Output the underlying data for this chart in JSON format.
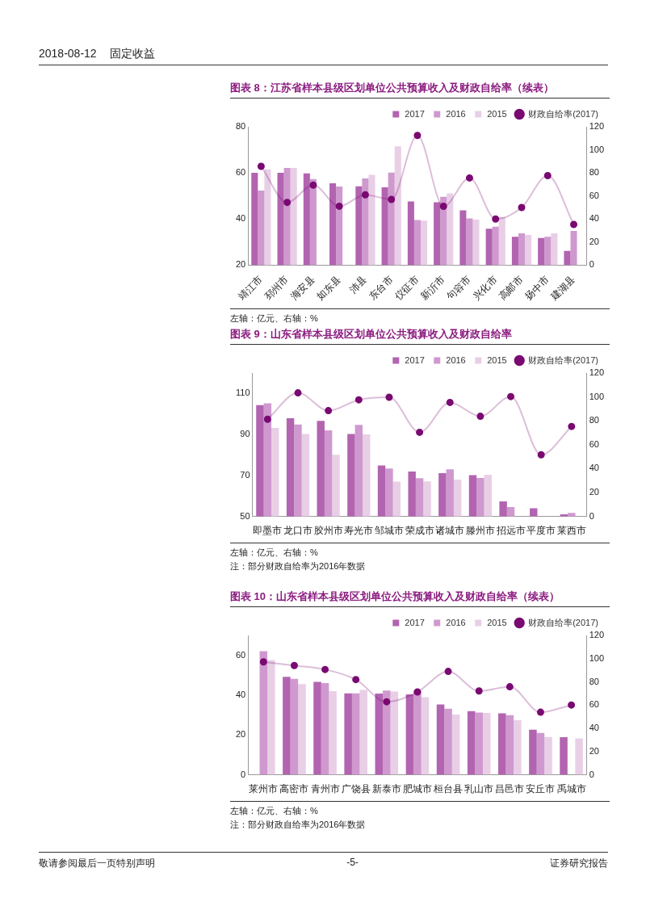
{
  "chart_data": [
    {
      "type": "bar",
      "title": "图表 8：江苏省样本县级区划单位公共预算收入及财政自给率（续表）",
      "categories": [
        "靖江市",
        "邳州市",
        "海安县",
        "如东县",
        "沛县",
        "东台市",
        "仪征市",
        "新沂市",
        "句容市",
        "兴化市",
        "高邮市",
        "扬中市",
        "建湖县"
      ],
      "series": [
        {
          "name": "2017",
          "color": "#b264b0",
          "values": [
            60,
            60,
            59.8,
            55.5,
            54.2,
            53.7,
            47.6,
            47.3,
            43.8,
            35.8,
            32.3,
            31.8,
            26.2
          ]
        },
        {
          "name": "2016",
          "color": "#cf99cf",
          "values": [
            52.3,
            62.1,
            57.3,
            54.1,
            57.6,
            60.1,
            39.6,
            49.6,
            40.3,
            36.7,
            33.8,
            32.3,
            34.8
          ]
        },
        {
          "name": "2015",
          "color": "#e8cfe6",
          "values": [
            61.5,
            62.1,
            null,
            null,
            59.2,
            71.5,
            39.3,
            51.1,
            39.7,
            40.8,
            33.1,
            33.8,
            null
          ]
        },
        {
          "name": "财政自给率(2017)",
          "type": "line",
          "axis": "y2",
          "color": "#7a0a72",
          "values": [
            85.7,
            54.4,
            69.4,
            51.1,
            61,
            57,
            112.5,
            51,
            75.6,
            40,
            50,
            77.6,
            35.3
          ]
        }
      ],
      "ylim": [
        20,
        80
      ],
      "yticks": [
        20,
        40,
        60,
        80
      ],
      "y2lim": [
        0,
        120
      ],
      "y2ticks": [
        0,
        20,
        40,
        60,
        80,
        100,
        120
      ],
      "grid": false,
      "legend": "top",
      "marker": "circle",
      "annotations": [
        "2018-08-12",
        "固定收益",
        "左轴：亿元、右轴：%"
      ]
    },
    {
      "type": "bar",
      "title": "图表 9：山东省样本县级区划单位公共预算收入及财政自给率",
      "categories": [
        "即墨市",
        "龙口市",
        "胶州市",
        "寿光市",
        "邹城市",
        "荣成市",
        "诸城市",
        "滕州市",
        "招远市",
        "平度市",
        "莱西市"
      ],
      "series": [
        {
          "name": "2017",
          "color": "#b264b0",
          "values": [
            104.3,
            97.9,
            96.6,
            90.2,
            74.9,
            71.9,
            71.1,
            70.1,
            57.3,
            54,
            51
          ]
        },
        {
          "name": "2016",
          "color": "#cf99cf",
          "values": [
            105.2,
            94.9,
            92,
            94.7,
            73.4,
            68.7,
            73,
            68.8,
            54.6,
            null,
            51.7
          ]
        },
        {
          "name": "2015",
          "color": "#e8cfe6",
          "values": [
            93.2,
            90.2,
            80.1,
            90,
            67,
            67.1,
            68,
            70.3,
            null,
            null,
            null
          ]
        },
        {
          "name": "财政自给率(2017)",
          "type": "line",
          "axis": "y2",
          "color": "#7a0a72",
          "values": [
            81.3,
            103.4,
            88.5,
            97.6,
            99.7,
            70.4,
            95.4,
            83.8,
            100.3,
            51.6,
            75.3
          ]
        }
      ],
      "ylim": [
        50,
        120
      ],
      "yticks": [
        50,
        70,
        90,
        110
      ],
      "y2lim": [
        0,
        120
      ],
      "y2ticks": [
        0,
        20,
        40,
        60,
        80,
        100,
        120
      ],
      "grid": false,
      "legend": "top",
      "marker": "circle",
      "annotations": [
        "左轴：亿元、右轴：%",
        "注：部分财政自给率为2016年数据"
      ]
    },
    {
      "type": "bar",
      "title": "图表 10：山东省样本县级区划单位公共预算收入及财政自给率（续表）",
      "categories": [
        "莱州市",
        "高密市",
        "青州市",
        "广饶县",
        "新泰市",
        "肥城市",
        "桓台县",
        "乳山市",
        "昌邑市",
        "安丘市",
        "禹城市"
      ],
      "series": [
        {
          "name": "2017",
          "color": "#b264b0",
          "values": [
            null,
            49.2,
            46.7,
            40.9,
            40.8,
            40.4,
            35.3,
            32,
            30.9,
            22.7,
            18.9
          ]
        },
        {
          "name": "2016",
          "color": "#cf99cf",
          "values": [
            62.1,
            48.2,
            46.1,
            40.9,
            42.3,
            42.2,
            33.2,
            31.3,
            30,
            21,
            null
          ]
        },
        {
          "name": "2015",
          "color": "#e8cfe6",
          "values": [
            57.6,
            45.6,
            42,
            42.6,
            41.8,
            39,
            30.3,
            31.1,
            27.4,
            19,
            18.3
          ]
        },
        {
          "name": "财政自给率(2017)",
          "type": "line",
          "axis": "y2",
          "color": "#7a0a72",
          "values": [
            97.2,
            94.1,
            90.7,
            82,
            62.9,
            71.3,
            89,
            72.2,
            75.8,
            53.9,
            60.1
          ]
        }
      ],
      "ylim": [
        0,
        70
      ],
      "yticks": [
        0,
        20,
        40,
        60
      ],
      "y2lim": [
        0,
        120
      ],
      "y2ticks": [
        0,
        20,
        40,
        60,
        80,
        100,
        120
      ],
      "grid": false,
      "legend": "top",
      "marker": "circle",
      "annotations": [
        "左轴：亿元、右轴：%",
        "注：部分财政自给率为2016年数据",
        "敬请参阅最后一页特别声明",
        "-5-",
        "证券研究报告"
      ]
    }
  ]
}
